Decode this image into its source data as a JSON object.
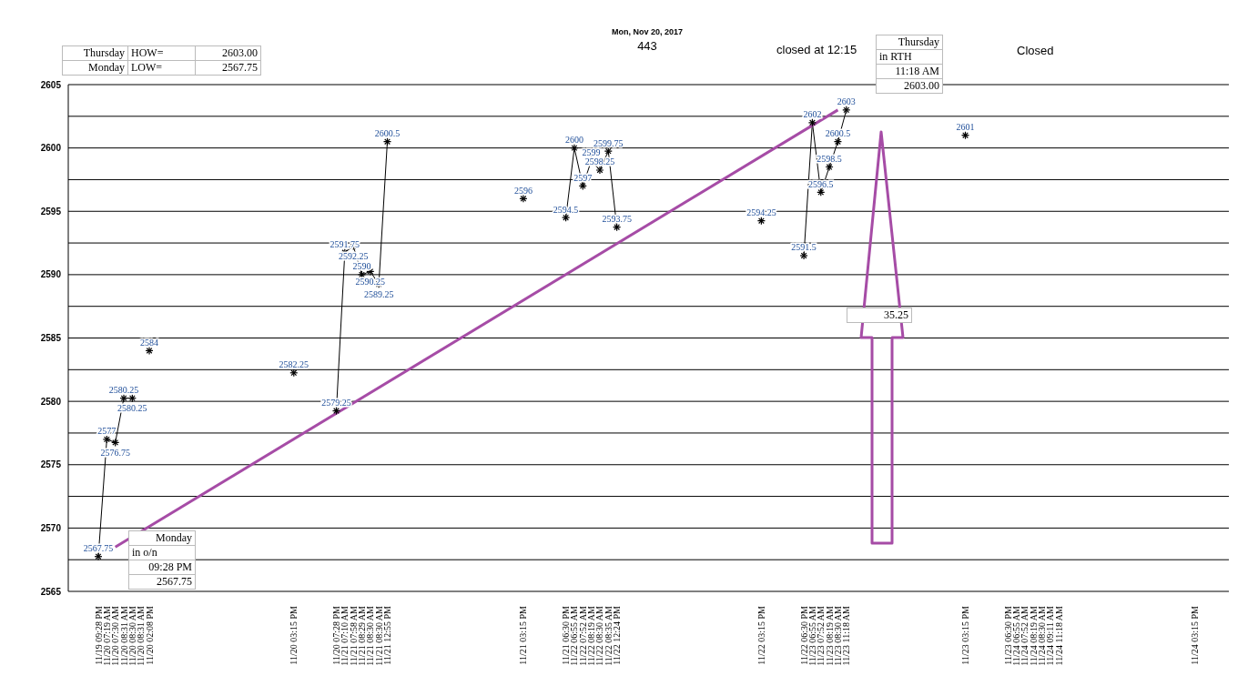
{
  "chart_data": {
    "type": "line",
    "title": "Mon, Nov 20, 2017",
    "subtitle": "443",
    "categories": [
      "11/19 09:28 PM",
      "11/20 07:19 AM",
      "11/20 07:30 AM",
      "11/20 08:31 AM",
      "11/20 08:30 AM",
      "11/20 08:31 AM",
      "11/20 02:08 PM",
      null,
      null,
      null,
      null,
      null,
      null,
      null,
      null,
      null,
      null,
      null,
      null,
      null,
      null,
      null,
      null,
      "11/20 03:15 PM",
      null,
      null,
      null,
      null,
      "11/20 07:28 PM",
      "11/21 07:10 AM",
      "11/21 07:58 AM",
      "11/21 08:29 AM",
      "11/21 08:30 AM",
      "11/21 08:30 AM",
      "11/21 12:55 PM",
      null,
      null,
      null,
      null,
      null,
      null,
      null,
      null,
      null,
      null,
      null,
      null,
      null,
      null,
      null,
      "11/21 03:15 PM",
      null,
      null,
      null,
      null,
      "11/21 06:30 PM",
      "11/22 06:55 AM",
      "11/22 07:52 AM",
      "11/22 08:19 AM",
      "11/22 08:30 AM",
      "11/22 08:35 AM",
      "11/22 12:24 PM",
      null,
      null,
      null,
      null,
      null,
      null,
      null,
      null,
      null,
      null,
      null,
      null,
      null,
      null,
      null,
      null,
      "11/22 03:15 PM",
      null,
      null,
      null,
      null,
      "11/22 06:30 PM",
      "11/23 06:55 AM",
      "11/23 07:52 AM",
      "11/23 08:19 AM",
      "11/23 08:30 AM",
      "11/23 11:18 AM",
      null,
      null,
      null,
      null,
      null,
      null,
      null,
      null,
      null,
      null,
      null,
      null,
      null,
      "11/23 03:15 PM",
      null,
      null,
      null,
      null,
      "11/23 06:30 PM",
      "11/24 06:55 AM",
      "11/24 07:52 AM",
      "11/24 08:19 AM",
      "11/24 08:30 AM",
      "11/24 09:11 AM",
      "11/24 11:18 AM",
      null,
      null,
      null,
      null,
      null,
      null,
      null,
      null,
      null,
      null,
      null,
      null,
      null,
      null,
      null,
      "11/24 03:15 PM",
      null,
      null,
      null,
      null
    ],
    "series": [
      {
        "color": "#000000",
        "marker": "cross",
        "value_labels": [
          "2567.75",
          "2577",
          "2576.75",
          "2580.25",
          "2580.25",
          null,
          "2584",
          null,
          null,
          null,
          null,
          null,
          null,
          null,
          null,
          null,
          null,
          null,
          null,
          null,
          null,
          null,
          null,
          "2582.25",
          null,
          null,
          null,
          null,
          "2579.25",
          "2591.75",
          "2592.25",
          "2590",
          "2590.25",
          "2589.25",
          "2600.5",
          null,
          null,
          null,
          null,
          null,
          null,
          null,
          null,
          null,
          null,
          null,
          null,
          null,
          null,
          null,
          "2596",
          null,
          null,
          null,
          null,
          "2594.5",
          "2600",
          "2597",
          "2599",
          "2598.25",
          "2599.75",
          "2593.75",
          null,
          null,
          null,
          null,
          null,
          null,
          null,
          null,
          null,
          null,
          null,
          null,
          null,
          null,
          null,
          null,
          "2594.25",
          null,
          null,
          null,
          null,
          "2591.5",
          "2602",
          "2596.5",
          "2598.5",
          "2600.5",
          "2603",
          null,
          null,
          null,
          null,
          null,
          null,
          null,
          null,
          null,
          null,
          null,
          null,
          null,
          "2601",
          null,
          null,
          null,
          null,
          null,
          null,
          null,
          null,
          null,
          null,
          null,
          null,
          null,
          null,
          null,
          null,
          null,
          null,
          null,
          null,
          null,
          null,
          null,
          null,
          null,
          null,
          null,
          null,
          null,
          null,
          null
        ],
        "values": [
          2567.75,
          2577,
          2576.75,
          2580.25,
          2580.25,
          null,
          2584,
          null,
          null,
          null,
          null,
          null,
          null,
          null,
          null,
          null,
          null,
          null,
          null,
          null,
          null,
          null,
          null,
          2582.25,
          null,
          null,
          null,
          null,
          2579.25,
          2591.75,
          2592.25,
          2590,
          2590.25,
          2589.25,
          2600.5,
          null,
          null,
          null,
          null,
          null,
          null,
          null,
          null,
          null,
          null,
          null,
          null,
          null,
          null,
          null,
          2596,
          null,
          null,
          null,
          null,
          2594.5,
          2600,
          2597,
          2599,
          2598.25,
          2599.75,
          2593.75,
          null,
          null,
          null,
          null,
          null,
          null,
          null,
          null,
          null,
          null,
          null,
          null,
          null,
          null,
          null,
          null,
          2594.25,
          null,
          null,
          null,
          null,
          2591.5,
          2602,
          2596.5,
          2598.5,
          2600.5,
          2603,
          null,
          null,
          null,
          null,
          null,
          null,
          null,
          null,
          null,
          null,
          null,
          null,
          null,
          2601,
          null,
          null,
          null,
          null,
          null,
          null,
          null,
          null,
          null,
          null,
          null,
          null,
          null,
          null,
          null,
          null,
          null,
          null,
          null,
          null,
          null,
          null,
          null,
          null,
          null,
          null,
          null,
          null,
          null,
          null,
          null
        ]
      },
      {
        "color": "#a64ca6",
        "marker": "none",
        "values": [
          null,
          null,
          2568.5,
          null,
          null,
          null,
          null,
          null,
          null,
          null,
          null,
          null,
          null,
          null,
          null,
          null,
          null,
          null,
          null,
          null,
          null,
          null,
          null,
          null,
          null,
          null,
          null,
          null,
          null,
          null,
          null,
          null,
          null,
          null,
          null,
          null,
          null,
          null,
          null,
          null,
          null,
          null,
          null,
          null,
          null,
          null,
          null,
          null,
          null,
          null,
          null,
          null,
          null,
          null,
          null,
          null,
          null,
          null,
          null,
          null,
          null,
          null,
          null,
          null,
          null,
          null,
          null,
          null,
          null,
          null,
          null,
          null,
          null,
          null,
          null,
          null,
          null,
          null,
          null,
          null,
          null,
          null,
          null,
          null,
          null,
          null,
          null,
          2603,
          null,
          null,
          null,
          null,
          null,
          null,
          null,
          null,
          null,
          null,
          null,
          null,
          null,
          null,
          null,
          null,
          null,
          null,
          null,
          null,
          null,
          null,
          null,
          null,
          null,
          null,
          null,
          null,
          null,
          null,
          null,
          null,
          null,
          null,
          null,
          null,
          null,
          null,
          null,
          null,
          null,
          null,
          null,
          null,
          null,
          null
        ]
      }
    ],
    "ylim": [
      2565,
      2605
    ],
    "yticks": [
      2565,
      {
        "value": 2567.5,
        "label": null
      },
      2570,
      {
        "value": 2572.5,
        "label": null
      },
      2575,
      {
        "value": 2577.5,
        "label": null
      },
      2580,
      {
        "value": 2582.5,
        "label": null
      },
      2585,
      {
        "value": 2587.5,
        "label": null
      },
      2590,
      {
        "value": 2592.5,
        "label": null
      },
      2595,
      {
        "value": 2597.5,
        "label": null
      },
      2600,
      {
        "value": 2602.5,
        "label": null
      },
      2605
    ],
    "grid": "y",
    "annotations": [
      "Thursday",
      "HOW=",
      "2603.00",
      "Monday",
      "LOW=",
      "2567.75",
      "closed at 12:15",
      "Closed",
      "Thursday",
      "in RTH",
      "11:18 AM",
      "2603.00",
      "Monday",
      "in o/n",
      "09:28 PM",
      "2567.75",
      "35.25"
    ]
  }
}
